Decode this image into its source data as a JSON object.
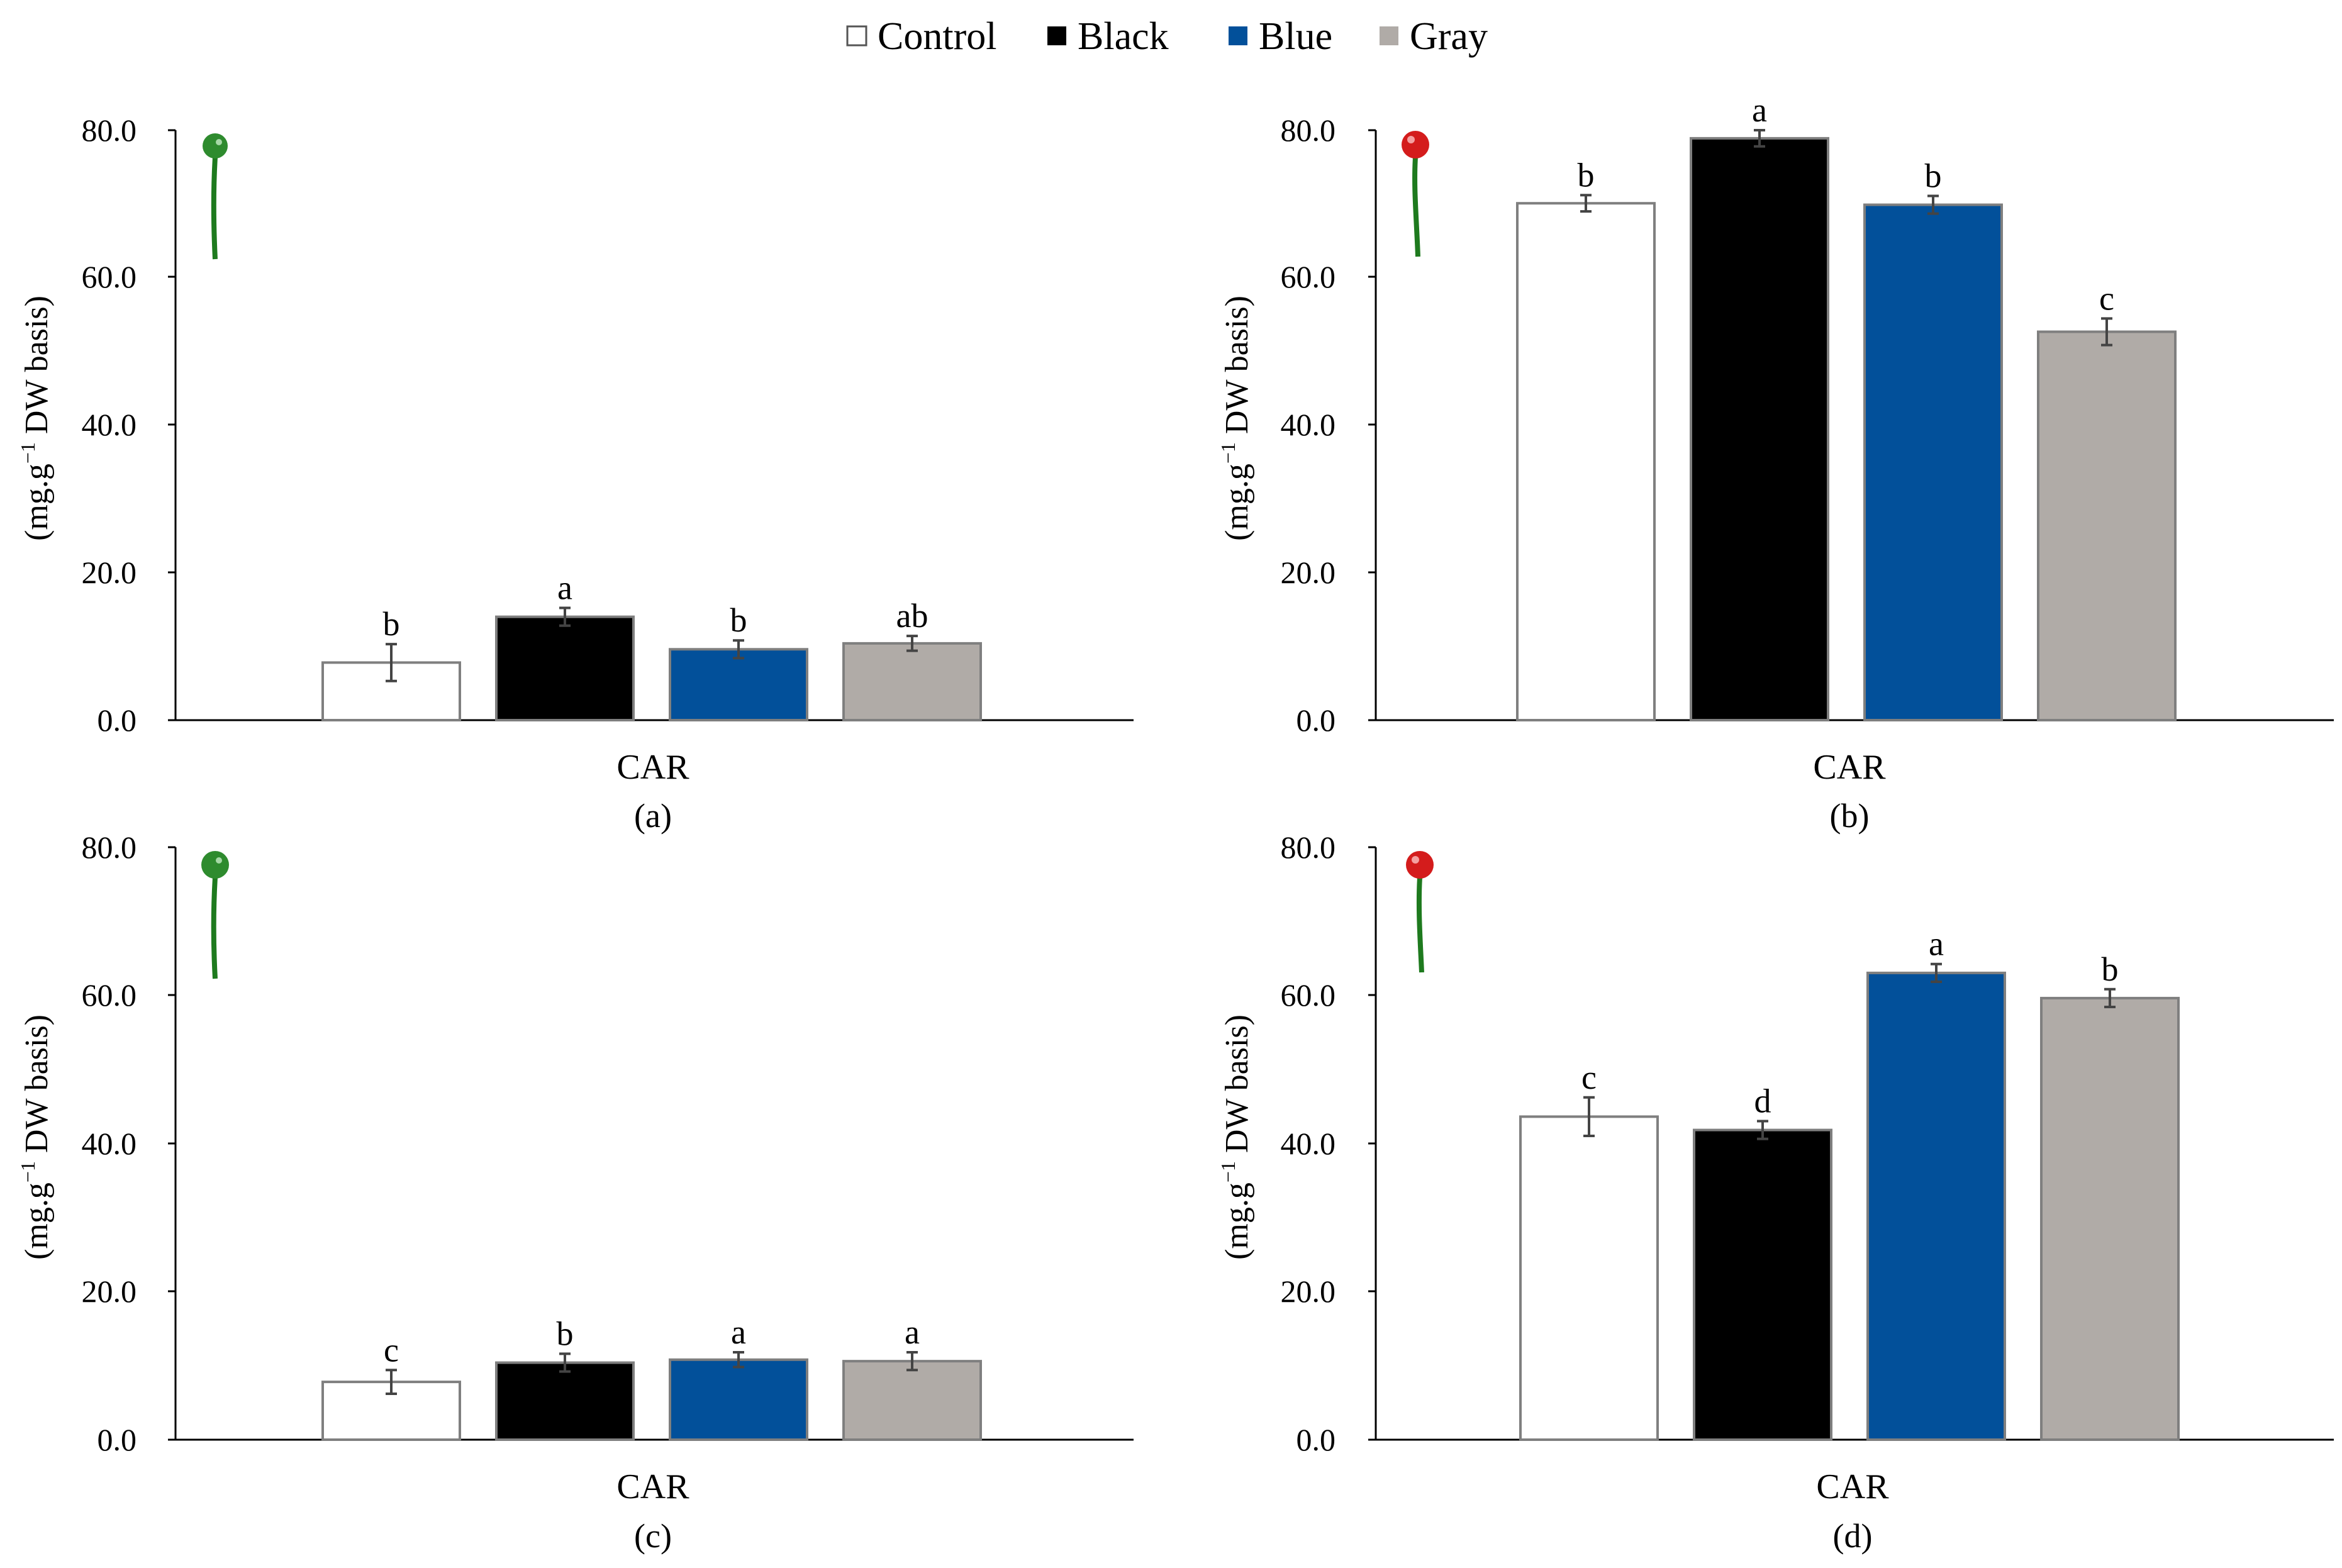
{
  "legend": [
    {
      "name": "Control",
      "color": "#ffffff"
    },
    {
      "name": "Black",
      "color": "#000000"
    },
    {
      "name": "Blue",
      "color": "#02509a"
    },
    {
      "name": "Gray",
      "color": "#b0aba7"
    }
  ],
  "y_axis": {
    "label_pre": "(mg.g",
    "label_sup": "−1",
    "label_post": " DW basis)",
    "ticks": [
      "0.0",
      "20.0",
      "40.0",
      "60.0",
      "80.0"
    ]
  },
  "chart_data": [
    {
      "type": "bar",
      "panel_label": "(a)",
      "category": "CAR",
      "ylim": [
        0,
        80
      ],
      "fruit": "green",
      "series": [
        {
          "name": "Control",
          "value": 7.8,
          "error": 2.5,
          "letter": "b"
        },
        {
          "name": "Black",
          "value": 14.0,
          "error": 1.2,
          "letter": "a"
        },
        {
          "name": "Blue",
          "value": 9.6,
          "error": 1.2,
          "letter": "b"
        },
        {
          "name": "Gray",
          "value": 10.4,
          "error": 1.0,
          "letter": "ab"
        }
      ]
    },
    {
      "type": "bar",
      "panel_label": "(b)",
      "category": "CAR",
      "ylim": [
        0,
        80
      ],
      "fruit": "red",
      "series": [
        {
          "name": "Control",
          "value": 70.0,
          "error": 1.1,
          "letter": "b"
        },
        {
          "name": "Black",
          "value": 78.8,
          "error": 1.1,
          "letter": "a"
        },
        {
          "name": "Blue",
          "value": 69.8,
          "error": 1.2,
          "letter": "b"
        },
        {
          "name": "Gray",
          "value": 52.6,
          "error": 1.8,
          "letter": "c"
        }
      ]
    },
    {
      "type": "bar",
      "panel_label": "(c)",
      "category": "CAR",
      "ylim": [
        0,
        80
      ],
      "fruit": "green",
      "series": [
        {
          "name": "Control",
          "value": 7.8,
          "error": 1.6,
          "letter": "c"
        },
        {
          "name": "Black",
          "value": 10.4,
          "error": 1.2,
          "letter": "b"
        },
        {
          "name": "Blue",
          "value": 10.8,
          "error": 1.0,
          "letter": "a"
        },
        {
          "name": "Gray",
          "value": 10.6,
          "error": 1.2,
          "letter": "a"
        }
      ]
    },
    {
      "type": "bar",
      "panel_label": "(d)",
      "category": "CAR",
      "ylim": [
        0,
        80
      ],
      "fruit": "red",
      "series": [
        {
          "name": "Control",
          "value": 43.6,
          "error": 2.6,
          "letter": "c"
        },
        {
          "name": "Black",
          "value": 41.8,
          "error": 1.2,
          "letter": "d"
        },
        {
          "name": "Blue",
          "value": 63.0,
          "error": 1.2,
          "letter": "a"
        },
        {
          "name": "Gray",
          "value": 59.6,
          "error": 1.2,
          "letter": "b"
        }
      ]
    }
  ]
}
